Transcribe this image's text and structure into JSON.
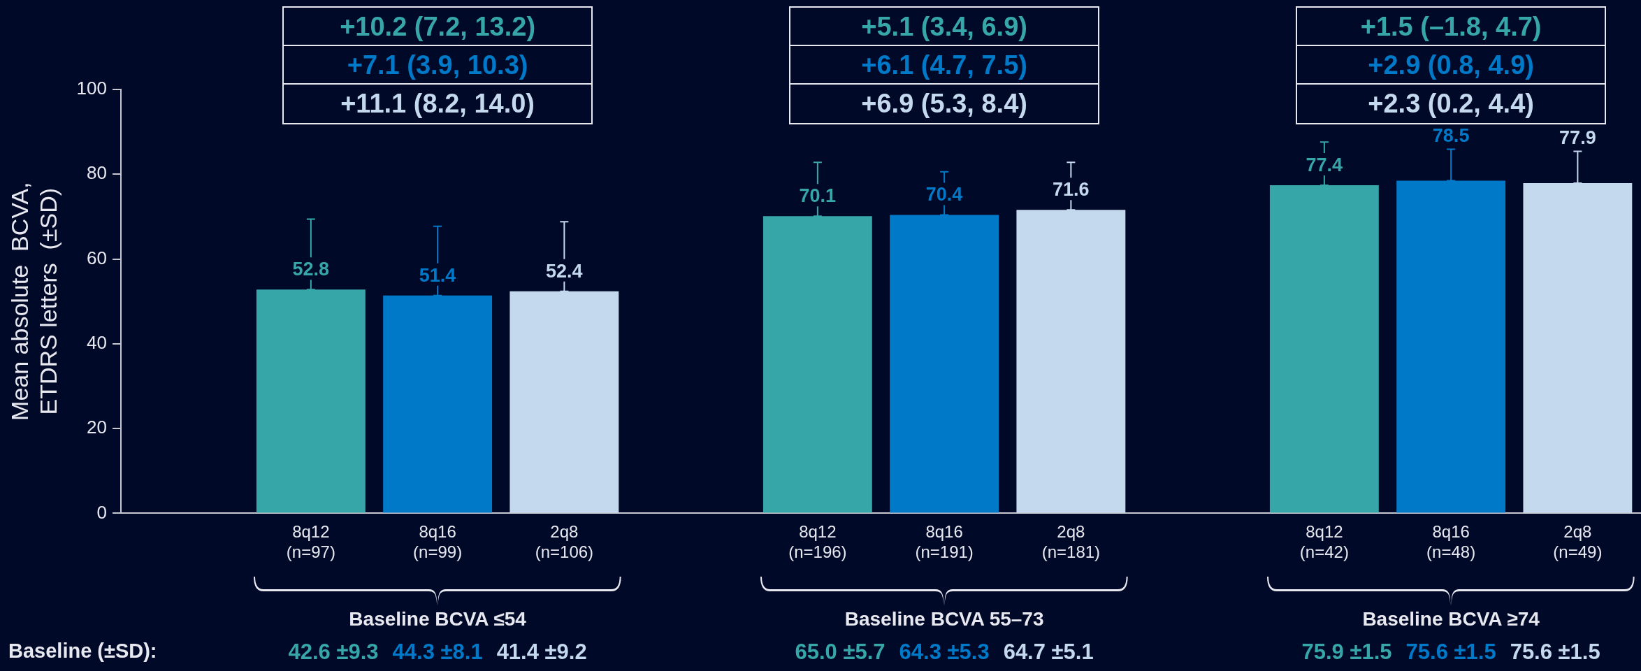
{
  "chart_data": {
    "type": "bar",
    "ylabel": "Mean absolute  BCVA,\nETDRS letters  (±SD)",
    "categories": [
      null,
      "8q12\n(n=97)",
      "8q16\n(n=99)",
      "2q8\n(n=106)",
      null,
      "8q12\n(n=196)",
      "8q16\n(n=191)",
      "2q8\n(n=181)",
      null,
      "8q12\n(n=42)",
      "8q16\n(n=48)",
      "2q8\n(n=49)"
    ],
    "values": [
      null,
      52.8,
      51.4,
      52.4,
      null,
      70.1,
      70.4,
      71.6,
      null,
      77.4,
      78.5,
      77.9
    ],
    "colors": [
      null,
      "#37a6a9",
      "#0079c9",
      "#c5d9ee",
      null,
      "#37a6a9",
      "#0079c9",
      "#c5d9ee",
      null,
      "#37a6a9",
      "#0079c9",
      "#c5d9ee"
    ],
    "errors": [
      null,
      [
        52.8,
        69.4
      ],
      [
        51.4,
        67.7
      ],
      [
        52.4,
        68.8
      ],
      null,
      [
        70.1,
        82.8
      ],
      [
        70.4,
        80.6
      ],
      [
        71.6,
        82.8
      ],
      null,
      [
        77.4,
        87.6
      ],
      [
        78.5,
        85.9
      ],
      [
        77.9,
        85.4
      ]
    ],
    "data_labels": true,
    "ylim": [
      0,
      100
    ],
    "yticks": [
      0,
      20,
      40,
      60,
      80,
      100
    ],
    "grid": false,
    "legend": false,
    "annotations": [
      "+10.2 (7.2, 13.2)",
      "+7.1 (3.9, 10.3)",
      "+11.1 (8.2, 14.0)",
      "+5.1 (3.4, 6.9)",
      "+6.1 (4.7, 7.5)",
      "+6.9 (5.3, 8.4)",
      "+1.5 (–1.8, 4.7)",
      "+2.9 (0.8, 4.9)",
      "+2.3 (0.2, 4.4)",
      "Baseline BCVA ≤54",
      "Baseline BCVA 55–73",
      "Baseline BCVA ≥74",
      "Baseline (±SD):",
      "42.6 ±9.3",
      "44.3 ±8.1",
      "41.4 ±9.2",
      "65.0 ±5.7",
      "64.3 ±5.3",
      "64.7 ±5.1",
      "75.9 ±1.5",
      "75.6 ±1.5",
      "75.6 ±1.5"
    ]
  }
}
